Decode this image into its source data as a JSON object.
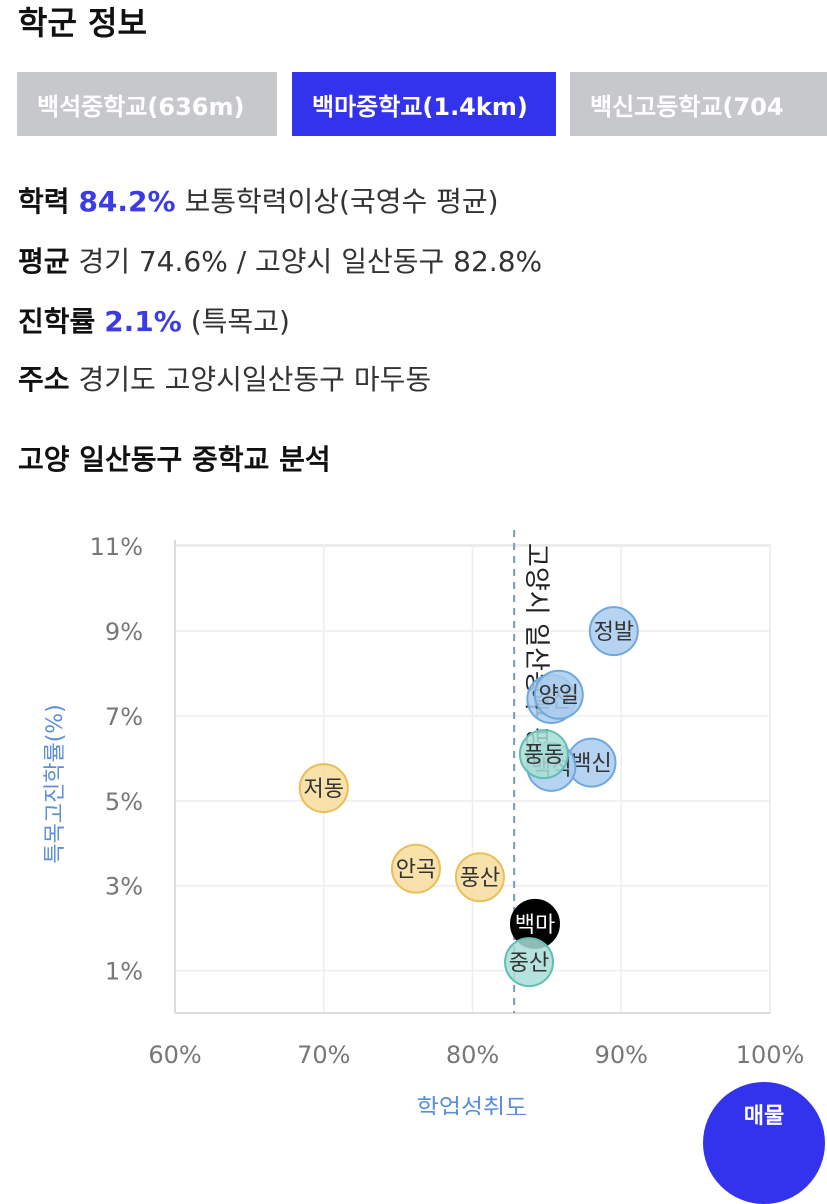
{
  "section_title": "학군 정보",
  "tabs": [
    {
      "label": "백석중학교(636m)",
      "active": false
    },
    {
      "label": "백마중학교(1.4km)",
      "active": true
    },
    {
      "label": "백신고등학교(704",
      "active": false
    }
  ],
  "info": {
    "academic": {
      "key": "학력",
      "value": "84.2%",
      "desc": "보통학력이상(국영수 평균)"
    },
    "average": {
      "key": "평균",
      "text": "경기 74.6% / 고양시 일산동구 82.8%"
    },
    "advance": {
      "key": "진학률",
      "value": "2.1%",
      "desc": "(특목고)"
    },
    "address": {
      "key": "주소",
      "text": "경기도 고양시일산동구 마두동"
    }
  },
  "analysis_title": "고양 일산동구 중학교 분석",
  "fab_label": "매물",
  "colors": {
    "accent": "#3333ee",
    "tab_inactive": "#c7c8cc",
    "bubble_blue": "#a9cdef",
    "bubble_blue_border": "#6fa8dc",
    "bubble_teal": "#a8ddd6",
    "bubble_teal_border": "#5fbfb3",
    "bubble_yellow": "#f7dc9c",
    "bubble_yellow_border": "#e8bf58",
    "highlight": "#000000",
    "axis_label": "#5b8fd9",
    "ref_line": "#7a9ab5"
  },
  "chart_data": {
    "type": "scatter",
    "xlabel": "학업성취도",
    "ylabel": "특목고진학률(%)",
    "xlim": [
      60,
      100
    ],
    "ylim": [
      0,
      11.5
    ],
    "x_ticks": [
      "60%",
      "70%",
      "80%",
      "90%",
      "100%"
    ],
    "x_tick_values": [
      60,
      70,
      80,
      90,
      100
    ],
    "y_ticks": [
      "11%",
      "9%",
      "7%",
      "5%",
      "3%",
      "1%"
    ],
    "y_tick_values": [
      11,
      9,
      7,
      5,
      3,
      1
    ],
    "grid": true,
    "reference_line": {
      "x": 82.8,
      "label": "고양시 일산동구 평균"
    },
    "points": [
      {
        "label": "정발",
        "x": 89.5,
        "y": 9.0,
        "group": "blue"
      },
      {
        "label": "일산",
        "x": 85.3,
        "y": 7.4,
        "group": "blue"
      },
      {
        "label": "양일",
        "x": 85.8,
        "y": 7.5,
        "group": "blue"
      },
      {
        "label": "백신",
        "x": 88.0,
        "y": 5.9,
        "group": "blue"
      },
      {
        "label": "백석",
        "x": 85.3,
        "y": 5.8,
        "group": "blue"
      },
      {
        "label": "풍동",
        "x": 84.8,
        "y": 6.1,
        "group": "teal"
      },
      {
        "label": "저동",
        "x": 70.0,
        "y": 5.3,
        "group": "yellow"
      },
      {
        "label": "안곡",
        "x": 76.2,
        "y": 3.4,
        "group": "yellow"
      },
      {
        "label": "풍산",
        "x": 80.5,
        "y": 3.2,
        "group": "yellow"
      },
      {
        "label": "백마",
        "x": 84.2,
        "y": 2.1,
        "group": "highlight"
      },
      {
        "label": "중산",
        "x": 83.8,
        "y": 1.2,
        "group": "teal"
      }
    ]
  }
}
